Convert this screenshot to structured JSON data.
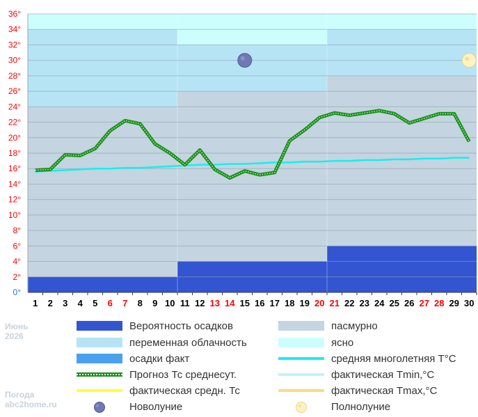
{
  "corner": {
    "month": "Июнь",
    "year": "2026",
    "site_line1": "Погода",
    "site_line2": "abc2home.ru"
  },
  "colors": {
    "precip_prob": "#3355d1",
    "partly_cloudy": "#b7e4f4",
    "overcast": "#c4d4e0",
    "clear": "#ccfefe",
    "precip_fact": "#4aa2ee",
    "norm_temp": "#13f0ef",
    "forecast": "#1a8f1a",
    "fact_avg": "#ffff33",
    "fact_min": "#bff4fb",
    "fact_max": "#ffd78a",
    "grid": "#8aa0ad",
    "tick_red": "#ff0000",
    "tick_black": "#000000",
    "tick_zero": "#2f6fe0"
  },
  "legend": {
    "precip_prob": "Вероятность осадков",
    "overcast": "пасмурно",
    "partly_cloudy": "переменная облачность",
    "clear": "ясно",
    "precip_fact": "осадки факт",
    "norm_temp": "средняя многолетняя T°C",
    "forecast": "Прогноз Тс среднесут.",
    "fact_min": "фактическая Tmin,°C",
    "fact_avg": "фактическая средн. Тс",
    "fact_max": "фактическая Tmax,°C",
    "new_moon": "Новолуние",
    "full_moon": "Полнолуние"
  },
  "chart_data": {
    "type": "line",
    "title": "",
    "xlabel": "",
    "ylabel": "",
    "x": [
      1,
      2,
      3,
      4,
      5,
      6,
      7,
      8,
      9,
      10,
      11,
      12,
      13,
      14,
      15,
      16,
      17,
      18,
      19,
      20,
      21,
      22,
      23,
      24,
      25,
      26,
      27,
      28,
      29,
      30
    ],
    "x_labels": [
      "1",
      "2",
      "3",
      "4",
      "5",
      "6",
      "7",
      "8",
      "9",
      "10",
      "11",
      "12",
      "13",
      "14",
      "15",
      "16",
      "17",
      "18",
      "19",
      "20",
      "21",
      "22",
      "23",
      "24",
      "25",
      "26",
      "27",
      "28",
      "29",
      "30"
    ],
    "weekend_days": [
      6,
      7,
      13,
      14,
      20,
      21,
      27,
      28
    ],
    "ylim": [
      0,
      36
    ],
    "y_ticks": [
      0,
      2,
      4,
      6,
      8,
      10,
      12,
      14,
      16,
      18,
      20,
      22,
      24,
      26,
      28,
      30,
      32,
      34,
      36
    ],
    "y_tick_labels": [
      "0°",
      "2°",
      "4°",
      "6°",
      "8°",
      "10°",
      "12°",
      "14°",
      "16°",
      "18°",
      "20°",
      "22°",
      "24°",
      "26°",
      "28°",
      "30°",
      "32°",
      "34°",
      "36°"
    ],
    "grid": true,
    "legend_position": "bottom",
    "cloud_periods": [
      {
        "from_day": 1,
        "to_day": 10,
        "overcast_to": 24,
        "partly_cloudy_to": 34,
        "clear_to": 36
      },
      {
        "from_day": 11,
        "to_day": 20,
        "overcast_to": 26,
        "partly_cloudy_to": 32,
        "clear_to": 36
      },
      {
        "from_day": 21,
        "to_day": 30,
        "overcast_to": 28,
        "partly_cloudy_to": 34,
        "clear_to": 36
      }
    ],
    "precip_probability_periods": [
      {
        "from_day": 1,
        "to_day": 10,
        "value": 2
      },
      {
        "from_day": 11,
        "to_day": 20,
        "value": 4
      },
      {
        "from_day": 21,
        "to_day": 30,
        "value": 6
      }
    ],
    "series": [
      {
        "name": "Прогноз Тс среднесут.",
        "values": [
          15.8,
          15.9,
          17.8,
          17.7,
          18.6,
          20.9,
          22.2,
          21.8,
          19.2,
          18.0,
          16.5,
          18.4,
          15.9,
          14.8,
          15.7,
          15.2,
          15.5,
          19.6,
          21.0,
          22.6,
          23.2,
          22.9,
          23.2,
          23.5,
          23.1,
          21.9,
          22.5,
          23.1,
          23.1,
          19.5
        ]
      },
      {
        "name": "средняя многолетняя T°C",
        "values": [
          15.6,
          15.7,
          15.8,
          15.9,
          16.0,
          16.0,
          16.1,
          16.1,
          16.2,
          16.3,
          16.4,
          16.5,
          16.5,
          16.6,
          16.6,
          16.7,
          16.8,
          16.8,
          16.9,
          16.9,
          17.0,
          17.0,
          17.1,
          17.1,
          17.2,
          17.2,
          17.3,
          17.3,
          17.4,
          17.4
        ]
      }
    ],
    "moon_phases": [
      {
        "type": "new",
        "day": 15,
        "y": 30
      },
      {
        "type": "full",
        "day": 30,
        "y": 30
      }
    ]
  }
}
